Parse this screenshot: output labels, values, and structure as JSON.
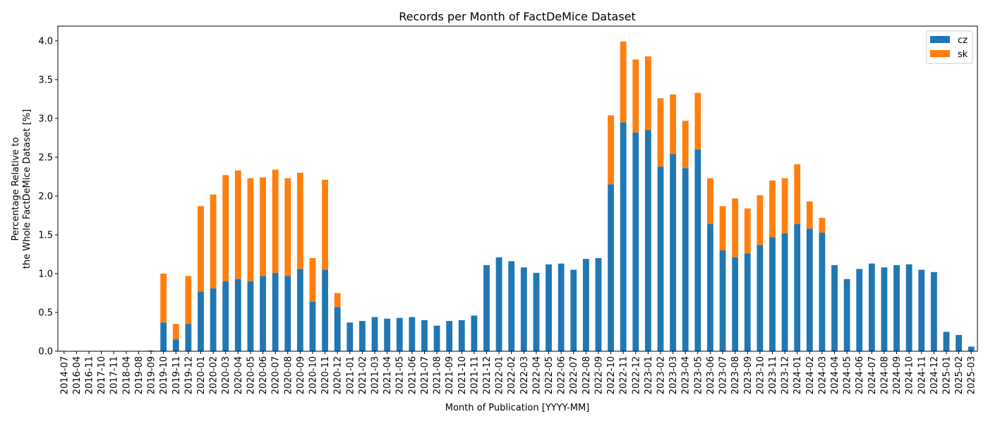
{
  "chart_data": {
    "type": "bar",
    "stacked": true,
    "title": "Records per Month of FactDeMice Dataset",
    "xlabel": "Month of Publication [YYYY-MM]",
    "ylabel_lines": [
      "Percentage Relative to",
      "the Whole FactDeMice Dataset [%]"
    ],
    "ylim": [
      0,
      4.19
    ],
    "yticks": [
      0.0,
      0.5,
      1.0,
      1.5,
      2.0,
      2.5,
      3.0,
      3.5,
      4.0
    ],
    "grid": false,
    "legend_position": "top-right",
    "categories": [
      "2014-07",
      "2016-04",
      "2016-11",
      "2017-10",
      "2017-11",
      "2018-04",
      "2019-08",
      "2019-09",
      "2019-10",
      "2019-11",
      "2019-12",
      "2020-01",
      "2020-02",
      "2020-03",
      "2020-04",
      "2020-05",
      "2020-06",
      "2020-07",
      "2020-08",
      "2020-09",
      "2020-10",
      "2020-11",
      "2020-12",
      "2021-01",
      "2021-02",
      "2021-03",
      "2021-04",
      "2021-05",
      "2021-06",
      "2021-07",
      "2021-08",
      "2021-09",
      "2021-10",
      "2021-11",
      "2021-12",
      "2022-01",
      "2022-02",
      "2022-03",
      "2022-04",
      "2022-05",
      "2022-06",
      "2022-07",
      "2022-08",
      "2022-09",
      "2022-10",
      "2022-11",
      "2022-12",
      "2023-01",
      "2023-02",
      "2023-03",
      "2023-04",
      "2023-05",
      "2023-06",
      "2023-07",
      "2023-08",
      "2023-09",
      "2023-10",
      "2023-11",
      "2023-12",
      "2024-01",
      "2024-02",
      "2024-03",
      "2024-04",
      "2024-05",
      "2024-06",
      "2024-07",
      "2024-08",
      "2024-09",
      "2024-10",
      "2024-11",
      "2024-12",
      "2025-01",
      "2025-02",
      "2025-03"
    ],
    "series": [
      {
        "name": "cz",
        "color": "#1f77b4",
        "values": [
          0.002,
          0.002,
          0.002,
          0.002,
          0.002,
          0.002,
          0.002,
          0.01,
          0.37,
          0.15,
          0.35,
          0.77,
          0.81,
          0.9,
          0.93,
          0.9,
          0.97,
          1.01,
          0.97,
          1.06,
          0.64,
          1.05,
          0.57,
          0.37,
          0.39,
          0.44,
          0.42,
          0.43,
          0.44,
          0.4,
          0.33,
          0.39,
          0.4,
          0.46,
          1.11,
          1.21,
          1.16,
          1.08,
          1.01,
          1.12,
          1.13,
          1.05,
          1.19,
          1.2,
          2.15,
          2.95,
          2.82,
          2.85,
          2.38,
          2.54,
          2.36,
          2.6,
          1.64,
          1.3,
          1.21,
          1.26,
          1.37,
          1.47,
          1.52,
          1.64,
          1.58,
          1.53,
          1.11,
          0.93,
          1.06,
          1.13,
          1.08,
          1.11,
          1.12,
          1.05,
          1.02,
          0.25,
          0.21,
          0.06
        ]
      },
      {
        "name": "sk",
        "color": "#ff7f0e",
        "values": [
          0,
          0,
          0,
          0,
          0,
          0,
          0,
          0,
          0.63,
          0.2,
          0.62,
          1.1,
          1.21,
          1.37,
          1.4,
          1.33,
          1.27,
          1.33,
          1.26,
          1.24,
          0.56,
          1.16,
          0.18,
          0,
          0,
          0,
          0,
          0,
          0,
          0,
          0,
          0,
          0,
          0,
          0,
          0,
          0,
          0,
          0,
          0,
          0,
          0,
          0,
          0,
          0.89,
          1.04,
          0.94,
          0.95,
          0.88,
          0.77,
          0.61,
          0.73,
          0.59,
          0.57,
          0.76,
          0.58,
          0.64,
          0.73,
          0.71,
          0.77,
          0.35,
          0.19,
          0,
          0,
          0,
          0,
          0,
          0,
          0,
          0,
          0,
          0,
          0,
          0
        ]
      }
    ]
  }
}
